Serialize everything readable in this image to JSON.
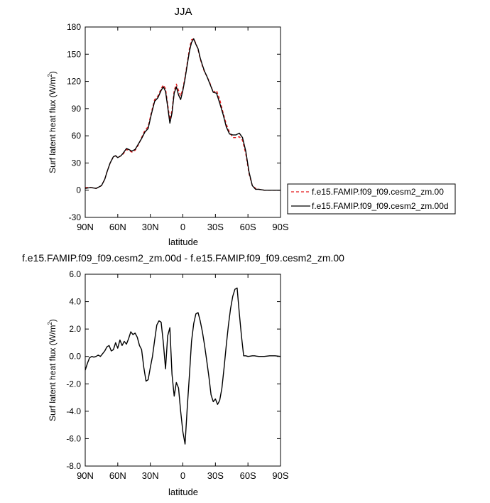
{
  "chart_data": [
    {
      "type": "line",
      "title": "JJA",
      "xlabel": "latitude",
      "ylabel": "Surf latent heat flux (W/m",
      "ylabel_sup": "2",
      "ylabel_close": ")",
      "xlim": [
        90,
        -90
      ],
      "ylim": [
        -30,
        180
      ],
      "x_ticks": [
        90,
        60,
        30,
        0,
        -30,
        -60,
        -90
      ],
      "x_tick_labels": [
        "90N",
        "60N",
        "30N",
        "0",
        "30S",
        "60S",
        "90S"
      ],
      "y_ticks": [
        -30,
        0,
        30,
        60,
        90,
        120,
        150,
        180
      ],
      "y_tick_labels": [
        "-30",
        "0",
        "30",
        "60",
        "90",
        "120",
        "150",
        "180"
      ],
      "legend": "right",
      "series": [
        {
          "name": "f.e15.FAMIP.f09_f09.cesm2_zm.00",
          "color": "#e31a1c",
          "dash": true,
          "x": [
            90,
            85,
            80,
            75,
            72,
            70,
            67,
            64,
            62,
            60,
            57,
            55,
            52,
            50,
            47,
            44,
            41,
            38,
            35,
            32,
            29,
            26,
            23,
            20,
            18,
            16,
            14,
            12,
            10,
            8,
            6,
            4,
            2,
            0,
            -2,
            -4,
            -6,
            -8,
            -10,
            -12,
            -14,
            -16,
            -18,
            -20,
            -22,
            -25,
            -28,
            -31,
            -34,
            -37,
            -40,
            -43,
            -46,
            -49,
            -52,
            -55,
            -58,
            -61,
            -64,
            -67,
            -70,
            -75,
            -80,
            -85,
            -90
          ],
          "y": [
            3,
            3,
            2,
            5,
            12,
            20,
            30,
            37,
            38,
            36,
            38,
            40,
            45,
            44,
            42,
            44,
            50,
            58,
            66,
            70,
            86,
            100,
            104,
            112,
            116,
            112,
            95,
            78,
            88,
            110,
            117,
            110,
            104,
            112,
            125,
            140,
            156,
            166,
            167,
            162,
            155,
            145,
            137,
            130,
            126,
            118,
            108,
            110,
            100,
            86,
            73,
            64,
            58,
            58,
            59,
            55,
            40,
            18,
            5,
            2,
            1,
            0,
            0,
            0,
            0
          ]
        },
        {
          "name": "f.e15.FAMIP.f09_f09.cesm2_zm.00d",
          "color": "#000000",
          "dash": false,
          "x": [
            90,
            85,
            80,
            75,
            72,
            70,
            67,
            64,
            62,
            60,
            57,
            55,
            52,
            50,
            47,
            44,
            41,
            38,
            35,
            32,
            29,
            26,
            23,
            20,
            18,
            16,
            14,
            12,
            10,
            8,
            6,
            4,
            2,
            0,
            -2,
            -4,
            -6,
            -8,
            -10,
            -12,
            -14,
            -16,
            -18,
            -20,
            -22,
            -25,
            -28,
            -31,
            -34,
            -37,
            -40,
            -43,
            -46,
            -49,
            -52,
            -55,
            -58,
            -61,
            -64,
            -67,
            -70,
            -75,
            -80,
            -85,
            -90
          ],
          "y": [
            2,
            3,
            2,
            5,
            12,
            20,
            30,
            37,
            38,
            36,
            38,
            41,
            46,
            45,
            43,
            45,
            51,
            57,
            64,
            68,
            84,
            98,
            102,
            110,
            114,
            109,
            92,
            74,
            85,
            107,
            114,
            105,
            100,
            110,
            123,
            138,
            153,
            163,
            167,
            161,
            156,
            146,
            138,
            131,
            126,
            117,
            108,
            107,
            96,
            84,
            70,
            62,
            61,
            61,
            63,
            58,
            43,
            20,
            5,
            1,
            1,
            0,
            0,
            0,
            0
          ]
        }
      ]
    },
    {
      "type": "line",
      "title": "f.e15.FAMIP.f09_f09.cesm2_zm.00d - f.e15.FAMIP.f09_f09.cesm2_zm.00",
      "xlabel": "latitude",
      "ylabel": "Surf latent heat flux (W/m",
      "ylabel_sup": "2",
      "ylabel_close": ")",
      "xlim": [
        90,
        -90
      ],
      "ylim": [
        -8,
        6
      ],
      "x_ticks": [
        90,
        60,
        30,
        0,
        -30,
        -60,
        -90
      ],
      "x_tick_labels": [
        "90N",
        "60N",
        "30N",
        "0",
        "30S",
        "60S",
        "90S"
      ],
      "y_ticks": [
        -8,
        -6,
        -4,
        -2,
        0,
        2,
        4,
        6
      ],
      "y_tick_labels": [
        "-8.0",
        "-6.0",
        "-4.0",
        "-2.0",
        "0.0",
        "2.0",
        "4.0",
        "6.0"
      ],
      "series": [
        {
          "color": "#000000",
          "dash": false,
          "x": [
            90,
            88,
            86,
            84,
            82,
            80,
            78,
            76,
            74,
            72,
            70,
            68,
            66,
            64,
            62,
            60,
            58,
            56,
            54,
            52,
            50,
            48,
            46,
            44,
            42,
            40,
            38,
            36,
            34,
            32,
            30,
            28,
            26,
            24,
            22,
            20,
            18,
            16,
            14,
            12,
            10,
            8,
            6,
            4,
            2,
            0,
            -2,
            -4,
            -6,
            -8,
            -10,
            -12,
            -14,
            -16,
            -18,
            -20,
            -22,
            -24,
            -26,
            -28,
            -30,
            -32,
            -34,
            -36,
            -38,
            -40,
            -42,
            -44,
            -46,
            -48,
            -50,
            -52,
            -54,
            -56,
            -58,
            -60,
            -62,
            -64,
            -66,
            -68,
            -70,
            -75,
            -80,
            -85,
            -90
          ],
          "y": [
            -1.0,
            -0.5,
            -0.1,
            0.0,
            -0.05,
            0.0,
            0.1,
            0.0,
            0.2,
            0.4,
            0.7,
            0.8,
            0.4,
            0.5,
            1.0,
            0.6,
            1.2,
            0.8,
            1.1,
            0.9,
            1.3,
            1.8,
            1.6,
            1.7,
            1.4,
            0.8,
            0.5,
            -0.8,
            -1.8,
            -1.7,
            -0.8,
            0.0,
            1.2,
            2.3,
            2.6,
            2.5,
            1.0,
            -0.9,
            1.5,
            2.1,
            -1.3,
            -2.9,
            -1.9,
            -2.3,
            -4.0,
            -5.5,
            -6.4,
            -3.8,
            -1.4,
            1.1,
            2.4,
            3.1,
            3.2,
            2.6,
            1.8,
            0.8,
            -0.3,
            -1.5,
            -2.8,
            -3.3,
            -3.1,
            -3.5,
            -3.2,
            -2.3,
            -0.8,
            0.8,
            2.3,
            3.5,
            4.4,
            4.9,
            5.0,
            3.2,
            1.5,
            0.05,
            0.05,
            0.0,
            0.02,
            0.05,
            0.05,
            0.02,
            0.0,
            0.0,
            0.05,
            0.05,
            0.0
          ]
        }
      ]
    }
  ]
}
